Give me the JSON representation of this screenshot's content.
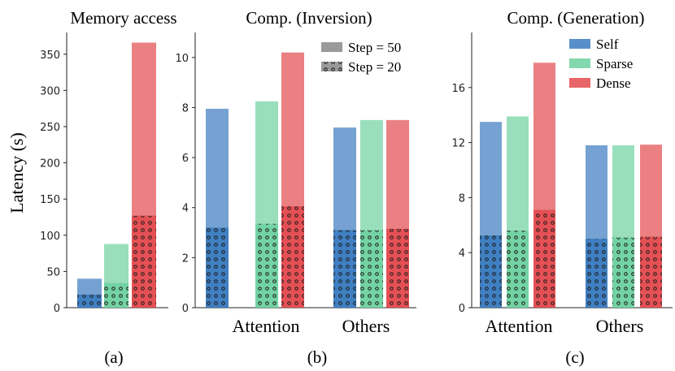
{
  "colors": {
    "self": "#3b7bbf",
    "sparse": "#6fd1a0",
    "dense": "#e34a4f"
  },
  "common": {
    "ylabel": "Latency (s)",
    "legend_steps": [
      {
        "label": "Step = 50",
        "pattern": "solid"
      },
      {
        "label": "Step = 20",
        "pattern": "dotted"
      }
    ],
    "legend_types": [
      {
        "label": "Self",
        "key": "self"
      },
      {
        "label": "Sparse",
        "key": "sparse"
      },
      {
        "label": "Dense",
        "key": "dense"
      }
    ]
  },
  "chart_data": [
    {
      "type": "bar",
      "title": "Memory access",
      "caption": "(a)",
      "ylim": [
        0,
        380
      ],
      "yticks": [
        0,
        50,
        100,
        150,
        200,
        250,
        300,
        350
      ],
      "groups": [
        {
          "label": "",
          "bars": [
            {
              "series": "Self",
              "key": "self",
              "step50": 40,
              "step20": 18
            },
            {
              "series": "Sparse",
              "key": "sparse",
              "step50": 88,
              "step20": 34
            },
            {
              "series": "Dense",
              "key": "dense",
              "step50": 366,
              "step20": 127
            }
          ]
        }
      ]
    },
    {
      "type": "bar",
      "title": "Comp. (Inversion)",
      "caption": "(b)",
      "ylim": [
        0,
        11
      ],
      "yticks": [
        0,
        2,
        4,
        6,
        8,
        10
      ],
      "legend": "steps",
      "groups": [
        {
          "label": "Attention",
          "bars": [
            {
              "series": "Self",
              "key": "self",
              "step50": 7.95,
              "step20": 3.2
            },
            {
              "series": "Sparse",
              "key": "sparse",
              "step50": 8.25,
              "step20": 3.35
            },
            {
              "series": "Dense",
              "key": "dense",
              "step50": 10.2,
              "step20": 4.05
            }
          ]
        },
        {
          "label": "Others",
          "bars": [
            {
              "series": "Self",
              "key": "self",
              "step50": 7.2,
              "step20": 3.1
            },
            {
              "series": "Sparse",
              "key": "sparse",
              "step50": 7.5,
              "step20": 3.1
            },
            {
              "series": "Dense",
              "key": "dense",
              "step50": 7.5,
              "step20": 3.15
            }
          ]
        }
      ]
    },
    {
      "type": "bar",
      "title": "Comp. (Generation)",
      "caption": "(c)",
      "ylim": [
        0,
        20
      ],
      "yticks": [
        0,
        4,
        8,
        12,
        16
      ],
      "legend": "types",
      "groups": [
        {
          "label": "Attention",
          "bars": [
            {
              "series": "Self",
              "key": "self",
              "step50": 13.5,
              "step20": 5.25
            },
            {
              "series": "Sparse",
              "key": "sparse",
              "step50": 13.9,
              "step20": 5.6
            },
            {
              "series": "Dense",
              "key": "dense",
              "step50": 17.8,
              "step20": 7.1
            }
          ]
        },
        {
          "label": "Others",
          "bars": [
            {
              "series": "Self",
              "key": "self",
              "step50": 11.8,
              "step20": 5.0
            },
            {
              "series": "Sparse",
              "key": "sparse",
              "step50": 11.8,
              "step20": 5.1
            },
            {
              "series": "Dense",
              "key": "dense",
              "step50": 11.85,
              "step20": 5.15
            }
          ]
        }
      ]
    }
  ]
}
